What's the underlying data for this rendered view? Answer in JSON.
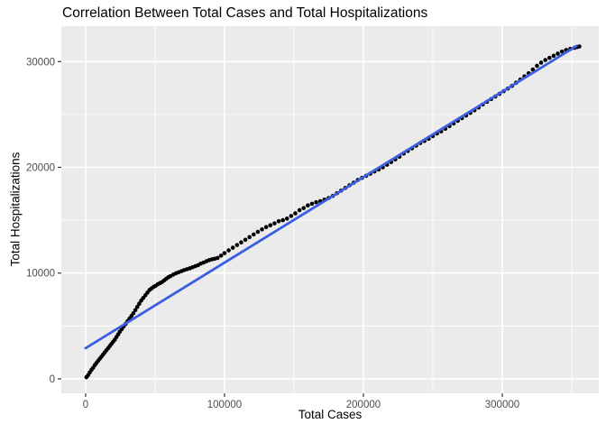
{
  "chart_data": {
    "type": "scatter",
    "title": "Correlation Between Total Cases and Total Hospitalizations",
    "xlabel": "Total Cases",
    "ylabel": "Total Hospitalizations",
    "legend": "none",
    "panel_bg": "#EBEBEB",
    "grid": {
      "show": true,
      "major_color": "#FFFFFF",
      "minor_color": "#FFFFFF"
    },
    "x_axis": {
      "ticks": [
        0,
        100000,
        200000,
        300000
      ],
      "tick_labels": [
        "0",
        "100000",
        "200000",
        "300000"
      ],
      "minor_ticks": [
        50000,
        150000,
        250000,
        350000
      ],
      "range": [
        -17500,
        369500
      ]
    },
    "y_axis": {
      "ticks": [
        0,
        10000,
        20000,
        30000
      ],
      "tick_labels": [
        "0",
        "10000",
        "20000",
        "30000"
      ],
      "minor_ticks": [
        5000,
        15000,
        25000
      ],
      "range": [
        -1370,
        33350
      ]
    },
    "colors": {
      "point": "#000000",
      "fit_line": "#3C5FE1",
      "tick_label": "#4D4D4D",
      "tick_mark": "#333333",
      "axis_text": "#000000"
    },
    "series": [
      {
        "name": "observations",
        "type": "scatter",
        "color": "#000000",
        "marker_radius": 2.3,
        "points": [
          [
            600,
            150
          ],
          [
            1800,
            350
          ],
          [
            3000,
            600
          ],
          [
            4200,
            850
          ],
          [
            5400,
            1050
          ],
          [
            6600,
            1300
          ],
          [
            7800,
            1500
          ],
          [
            9000,
            1700
          ],
          [
            10200,
            1900
          ],
          [
            11400,
            2100
          ],
          [
            12600,
            2300
          ],
          [
            13800,
            2500
          ],
          [
            15000,
            2700
          ],
          [
            16200,
            2900
          ],
          [
            17400,
            3100
          ],
          [
            18600,
            3300
          ],
          [
            19800,
            3500
          ],
          [
            21000,
            3700
          ],
          [
            22200,
            3950
          ],
          [
            23400,
            4200
          ],
          [
            24600,
            4450
          ],
          [
            26000,
            4700
          ],
          [
            27400,
            4950
          ],
          [
            28800,
            5200
          ],
          [
            30200,
            5450
          ],
          [
            31600,
            5700
          ],
          [
            33000,
            5950
          ],
          [
            34400,
            6200
          ],
          [
            35800,
            6500
          ],
          [
            37200,
            6800
          ],
          [
            38600,
            7100
          ],
          [
            40000,
            7400
          ],
          [
            41500,
            7650
          ],
          [
            43000,
            7900
          ],
          [
            44500,
            8150
          ],
          [
            46000,
            8400
          ],
          [
            47500,
            8550
          ],
          [
            49000,
            8700
          ],
          [
            50500,
            8800
          ],
          [
            52000,
            8950
          ],
          [
            53500,
            9050
          ],
          [
            55000,
            9150
          ],
          [
            56500,
            9300
          ],
          [
            58000,
            9450
          ],
          [
            59500,
            9600
          ],
          [
            61000,
            9700
          ],
          [
            63000,
            9850
          ],
          [
            65000,
            9980
          ],
          [
            67000,
            10080
          ],
          [
            69000,
            10180
          ],
          [
            71000,
            10280
          ],
          [
            73000,
            10370
          ],
          [
            75000,
            10450
          ],
          [
            77000,
            10550
          ],
          [
            79000,
            10650
          ],
          [
            81000,
            10750
          ],
          [
            83000,
            10900
          ],
          [
            85000,
            11000
          ],
          [
            87000,
            11120
          ],
          [
            89000,
            11220
          ],
          [
            91000,
            11300
          ],
          [
            93000,
            11360
          ],
          [
            95000,
            11430
          ],
          [
            97500,
            11650
          ],
          [
            100000,
            11880
          ],
          [
            103000,
            12150
          ],
          [
            106000,
            12400
          ],
          [
            109000,
            12650
          ],
          [
            112000,
            12900
          ],
          [
            115000,
            13150
          ],
          [
            118000,
            13400
          ],
          [
            121000,
            13650
          ],
          [
            124000,
            13900
          ],
          [
            127000,
            14130
          ],
          [
            130000,
            14350
          ],
          [
            133000,
            14520
          ],
          [
            136000,
            14700
          ],
          [
            139000,
            14900
          ],
          [
            142000,
            15000
          ],
          [
            145000,
            15150
          ],
          [
            148000,
            15400
          ],
          [
            151000,
            15650
          ],
          [
            154000,
            15950
          ],
          [
            157000,
            16150
          ],
          [
            160000,
            16400
          ],
          [
            163000,
            16550
          ],
          [
            166000,
            16700
          ],
          [
            169000,
            16800
          ],
          [
            172000,
            16950
          ],
          [
            175000,
            17100
          ],
          [
            178000,
            17300
          ],
          [
            181000,
            17550
          ],
          [
            184000,
            17800
          ],
          [
            187000,
            18050
          ],
          [
            190000,
            18300
          ],
          [
            193000,
            18550
          ],
          [
            196000,
            18800
          ],
          [
            199000,
            19000
          ],
          [
            202000,
            19200
          ],
          [
            205000,
            19400
          ],
          [
            208000,
            19600
          ],
          [
            211000,
            19800
          ],
          [
            214000,
            20000
          ],
          [
            217000,
            20250
          ],
          [
            220000,
            20500
          ],
          [
            223000,
            20750
          ],
          [
            226000,
            21000
          ],
          [
            229000,
            21300
          ],
          [
            232000,
            21550
          ],
          [
            235000,
            21800
          ],
          [
            238000,
            22050
          ],
          [
            241000,
            22300
          ],
          [
            244000,
            22500
          ],
          [
            247000,
            22700
          ],
          [
            250000,
            22950
          ],
          [
            253000,
            23200
          ],
          [
            256000,
            23400
          ],
          [
            259000,
            23650
          ],
          [
            262000,
            23900
          ],
          [
            265000,
            24150
          ],
          [
            268000,
            24400
          ],
          [
            271000,
            24650
          ],
          [
            274000,
            24900
          ],
          [
            277000,
            25150
          ],
          [
            280000,
            25400
          ],
          [
            283000,
            25650
          ],
          [
            286000,
            25950
          ],
          [
            289000,
            26200
          ],
          [
            292000,
            26450
          ],
          [
            295000,
            26700
          ],
          [
            298000,
            26950
          ],
          [
            301000,
            27200
          ],
          [
            304000,
            27450
          ],
          [
            307000,
            27700
          ],
          [
            310000,
            28000
          ],
          [
            313000,
            28300
          ],
          [
            316000,
            28600
          ],
          [
            319000,
            28900
          ],
          [
            322000,
            29250
          ],
          [
            325000,
            29600
          ],
          [
            328000,
            29900
          ],
          [
            331000,
            30150
          ],
          [
            334000,
            30350
          ],
          [
            337000,
            30550
          ],
          [
            340000,
            30750
          ],
          [
            343000,
            30950
          ],
          [
            346000,
            31100
          ],
          [
            349000,
            31200
          ],
          [
            352000,
            31300
          ],
          [
            354000,
            31380
          ],
          [
            355500,
            31430
          ]
        ]
      },
      {
        "name": "linear-fit",
        "type": "line",
        "color": "#3C5FE1",
        "width": 2.8,
        "points": [
          [
            0,
            2900
          ],
          [
            353500,
            31480
          ]
        ]
      }
    ]
  }
}
